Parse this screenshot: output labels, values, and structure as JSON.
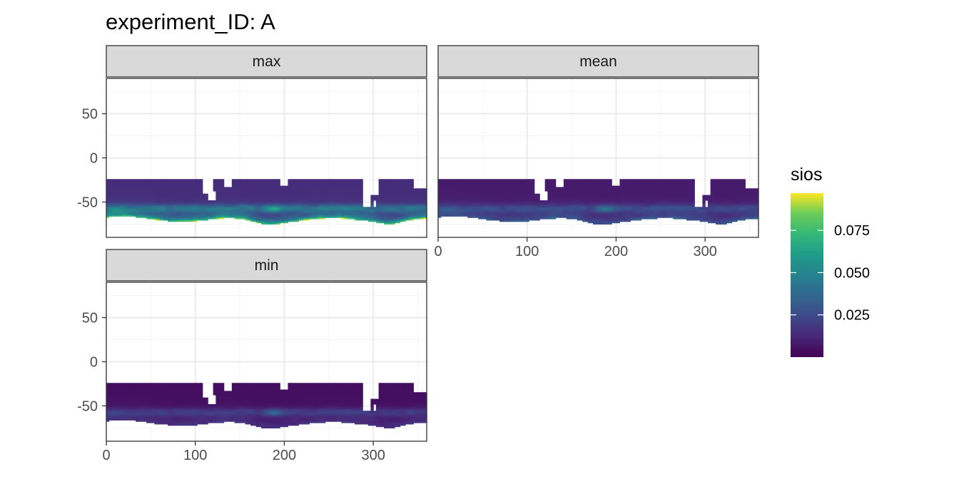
{
  "chart_data": {
    "type": "heatmap",
    "title": "experiment_ID: A",
    "facets": [
      {
        "label": "max",
        "stat": "max"
      },
      {
        "label": "mean",
        "stat": "mean"
      },
      {
        "label": "min",
        "stat": "min"
      }
    ],
    "xlim": [
      0,
      360
    ],
    "ylim": [
      -90,
      90
    ],
    "x_ticks": [
      0,
      100,
      200,
      300
    ],
    "y_ticks": [
      50,
      0,
      -50
    ],
    "x_tick_labels": [
      "0",
      "100",
      "200",
      "300"
    ],
    "y_tick_labels": [
      "50",
      "0",
      "-50"
    ],
    "data_extent": {
      "lon": [
        0,
        360
      ],
      "lat": [
        -78,
        -25
      ]
    },
    "legend": {
      "title": "sios",
      "position": "right",
      "range": [
        0.0,
        0.097
      ],
      "breaks": [
        0.075,
        0.05,
        0.025
      ],
      "break_labels": [
        "0.075",
        "0.050",
        "0.025"
      ],
      "colormap": "viridis"
    },
    "grid": true,
    "colors": {
      "panel_border": "#333333",
      "strip_fill": "#d9d9d9",
      "grid_major": "#ebebeb",
      "grid_minor": "#f4f4f4"
    }
  }
}
